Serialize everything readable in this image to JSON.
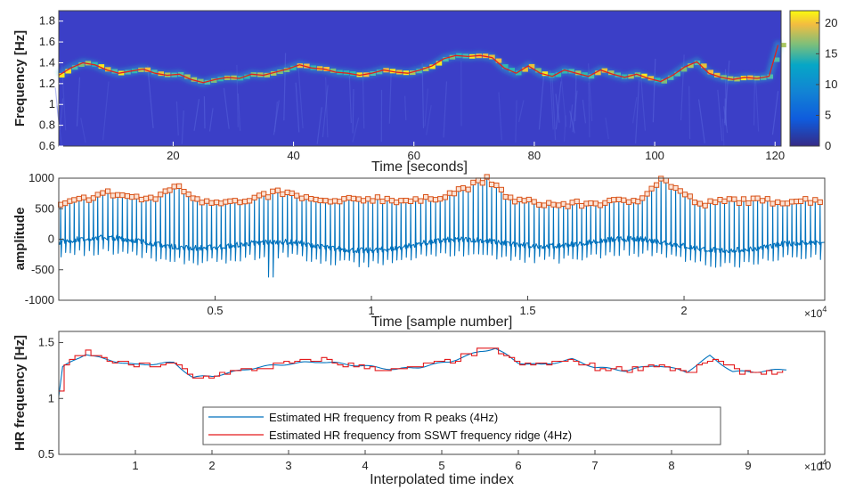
{
  "chart_data": [
    {
      "type": "heatmap",
      "title": "",
      "xlabel": "Time [seconds]",
      "ylabel": "Frequency [Hz]",
      "xlim": [
        1,
        121
      ],
      "ylim": [
        0.6,
        1.9
      ],
      "xticks": [
        "20",
        "40",
        "60",
        "80",
        "100",
        "120"
      ],
      "yticks": [
        "0.6",
        "0.8",
        "1",
        "1.2",
        "1.4",
        "1.6",
        "1.8"
      ],
      "colorbar_ticks": [
        "0",
        "5",
        "10",
        "15",
        "20"
      ],
      "colorbar_range": [
        0,
        22
      ],
      "colormap": "parula",
      "background_color": "#3b3fc7",
      "ridge_color": "#e02020",
      "ridge": {
        "x": [
          1,
          3,
          5,
          7,
          9,
          11,
          13,
          15,
          17,
          19,
          21,
          23,
          25,
          27,
          29,
          31,
          33,
          35,
          37,
          39,
          41,
          43,
          45,
          47,
          49,
          51,
          53,
          55,
          57,
          59,
          61,
          63,
          65,
          67,
          69,
          71,
          73,
          75,
          77,
          79,
          81,
          83,
          85,
          87,
          89,
          91,
          93,
          95,
          97,
          99,
          101,
          103,
          105,
          107,
          109,
          111,
          113,
          115,
          117,
          119,
          120.5
        ],
        "y": [
          1.28,
          1.35,
          1.4,
          1.38,
          1.33,
          1.3,
          1.32,
          1.34,
          1.3,
          1.28,
          1.29,
          1.24,
          1.21,
          1.24,
          1.26,
          1.25,
          1.29,
          1.28,
          1.31,
          1.34,
          1.38,
          1.35,
          1.34,
          1.31,
          1.3,
          1.28,
          1.3,
          1.33,
          1.31,
          1.3,
          1.33,
          1.37,
          1.44,
          1.47,
          1.46,
          1.47,
          1.45,
          1.35,
          1.3,
          1.37,
          1.3,
          1.27,
          1.33,
          1.3,
          1.27,
          1.33,
          1.29,
          1.26,
          1.29,
          1.25,
          1.22,
          1.28,
          1.36,
          1.41,
          1.3,
          1.26,
          1.24,
          1.26,
          1.25,
          1.27,
          1.57
        ]
      }
    },
    {
      "type": "line",
      "title": "",
      "xlabel": "Time [sample number]",
      "ylabel": "amplitude",
      "xlim": [
        0,
        24500
      ],
      "ylim": [
        -1000,
        1000
      ],
      "xticks": [
        "0.5",
        "1",
        "1.5",
        "2"
      ],
      "x_exponent": "×10^4",
      "yticks": [
        "-1000",
        "-500",
        "0",
        "500",
        "1000"
      ],
      "signal_color": "#0072bd",
      "marker_color": "#d95319",
      "r_peaks": {
        "x": [
          0,
          1500,
          3000,
          3700,
          4500,
          6000,
          7000,
          8500,
          10000,
          11500,
          12500,
          13700,
          14500,
          16000,
          17500,
          18500,
          19300,
          20500,
          21500,
          23000,
          24300
        ],
        "y": [
          540,
          760,
          640,
          880,
          640,
          600,
          780,
          600,
          670,
          620,
          740,
          980,
          640,
          560,
          600,
          640,
          990,
          560,
          640,
          620,
          640
        ]
      }
    },
    {
      "type": "line",
      "title": "",
      "xlabel": "Interpolated time index",
      "ylabel": "HR frequency [Hz]",
      "xlim": [
        0,
        100000
      ],
      "ylim": [
        0.5,
        1.6
      ],
      "xticks": [
        "1",
        "2",
        "3",
        "4",
        "5",
        "6",
        "7",
        "8",
        "9",
        "10"
      ],
      "x_exponent": "×10^4",
      "yticks": [
        "0.5",
        "1",
        "1.5"
      ],
      "legend_position": "bottom-center",
      "series": [
        {
          "name": "Estimated HR frequency from R peaks (4Hz)",
          "color": "#0072bd",
          "x": [
            0,
            500,
            3500,
            6000,
            10000,
            15000,
            17500,
            20000,
            23000,
            26000,
            30000,
            34000,
            37000,
            40000,
            44000,
            47000,
            51000,
            55000,
            57000,
            60000,
            63000,
            67000,
            70000,
            74000,
            78000,
            82000,
            85000,
            88000,
            91000,
            95000
          ],
          "y": [
            1.02,
            1.28,
            1.4,
            1.35,
            1.3,
            1.32,
            1.19,
            1.2,
            1.24,
            1.28,
            1.31,
            1.33,
            1.31,
            1.29,
            1.26,
            1.28,
            1.33,
            1.42,
            1.45,
            1.32,
            1.3,
            1.35,
            1.28,
            1.25,
            1.3,
            1.24,
            1.38,
            1.24,
            1.24,
            1.26
          ]
        },
        {
          "name": "Estimated HR frequency from SSWT frequency ridge (4Hz)",
          "color": "#e31a1c",
          "x": [
            0,
            500,
            3500,
            6000,
            10000,
            15000,
            17500,
            20000,
            23000,
            26000,
            30000,
            34000,
            37000,
            40000,
            44000,
            47000,
            51000,
            55000,
            57000,
            60000,
            63000,
            67000,
            70000,
            74000,
            78000,
            82000,
            85000,
            88000,
            91000,
            95000
          ],
          "y": [
            1.08,
            1.3,
            1.41,
            1.34,
            1.29,
            1.31,
            1.18,
            1.21,
            1.25,
            1.27,
            1.32,
            1.35,
            1.3,
            1.28,
            1.25,
            1.29,
            1.34,
            1.43,
            1.44,
            1.3,
            1.31,
            1.34,
            1.27,
            1.26,
            1.31,
            1.22,
            1.36,
            1.25,
            1.23,
            1.25
          ]
        }
      ]
    }
  ]
}
